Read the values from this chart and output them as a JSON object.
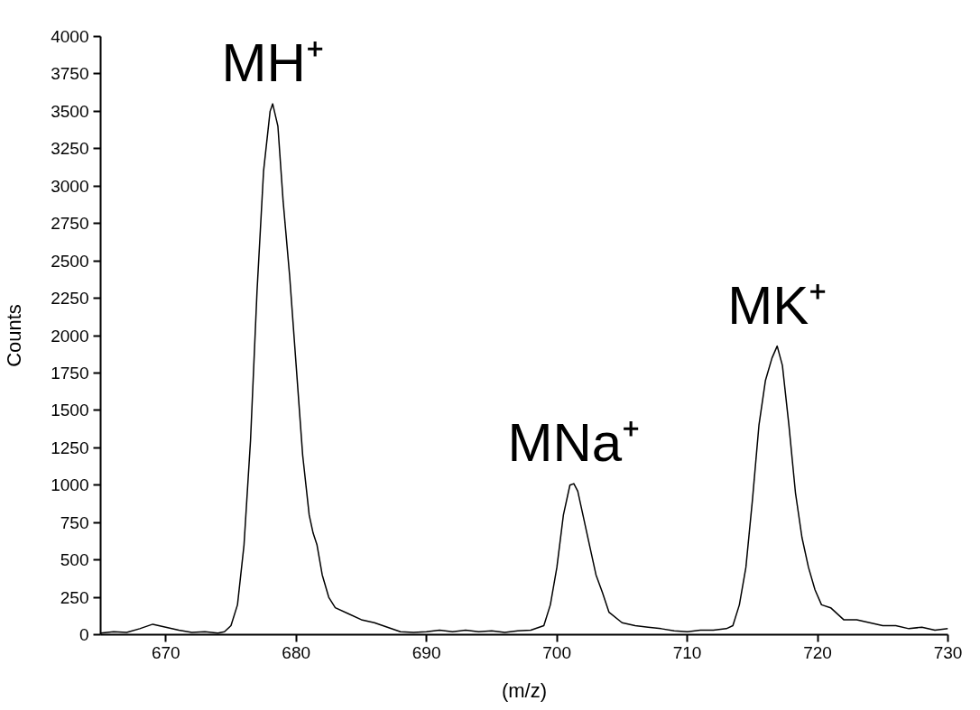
{
  "chart_data": {
    "type": "line",
    "xlabel": "(m/z)",
    "ylabel": "Counts",
    "x": [
      665,
      666,
      667,
      668,
      669,
      670,
      671,
      672,
      673,
      674,
      674.5,
      675,
      675.5,
      676,
      676.5,
      677,
      677.5,
      678,
      678.2,
      678.6,
      679,
      679.5,
      680,
      680.5,
      681,
      681.3,
      681.6,
      682,
      682.5,
      683,
      684,
      685,
      686,
      687,
      688,
      689,
      690,
      691,
      692,
      693,
      694,
      695,
      696,
      697,
      698,
      699,
      699.5,
      700,
      700.5,
      701,
      701.3,
      701.6,
      702,
      702.5,
      703,
      703.5,
      704,
      705,
      706,
      707,
      708,
      709,
      710,
      711,
      712,
      713,
      713.5,
      714,
      714.5,
      715,
      715.5,
      716,
      716.5,
      716.9,
      717.3,
      717.8,
      718.3,
      718.8,
      719.3,
      719.8,
      720.3,
      721,
      722,
      723,
      724,
      725,
      726,
      727,
      728,
      729,
      730
    ],
    "series": [
      {
        "color": "#000000",
        "values": [
          10,
          20,
          15,
          40,
          70,
          50,
          30,
          15,
          20,
          10,
          20,
          60,
          200,
          600,
          1300,
          2300,
          3100,
          3500,
          3550,
          3400,
          2900,
          2400,
          1800,
          1200,
          800,
          680,
          600,
          400,
          250,
          180,
          140,
          100,
          80,
          50,
          20,
          15,
          20,
          30,
          20,
          30,
          20,
          25,
          15,
          25,
          30,
          60,
          200,
          450,
          800,
          1000,
          1010,
          960,
          800,
          600,
          400,
          280,
          150,
          80,
          60,
          50,
          40,
          25,
          20,
          30,
          30,
          40,
          60,
          200,
          450,
          900,
          1400,
          1700,
          1850,
          1930,
          1800,
          1400,
          950,
          650,
          450,
          300,
          200,
          180,
          100,
          100,
          80,
          60,
          60,
          40,
          50,
          30,
          40
        ]
      }
    ],
    "xlim": [
      665,
      730
    ],
    "xticks": [
      670,
      680,
      690,
      700,
      710,
      720,
      730
    ],
    "ylim": [
      0,
      4000
    ],
    "yticks": [
      0,
      250,
      500,
      750,
      1000,
      1250,
      1500,
      1750,
      2000,
      2250,
      2500,
      2750,
      3000,
      3250,
      3500,
      3750,
      4000
    ],
    "annotations": [
      "MH⁺",
      "MNa⁺",
      "MK⁺"
    ],
    "grid": false,
    "marker": "none",
    "line_style": "solid"
  }
}
